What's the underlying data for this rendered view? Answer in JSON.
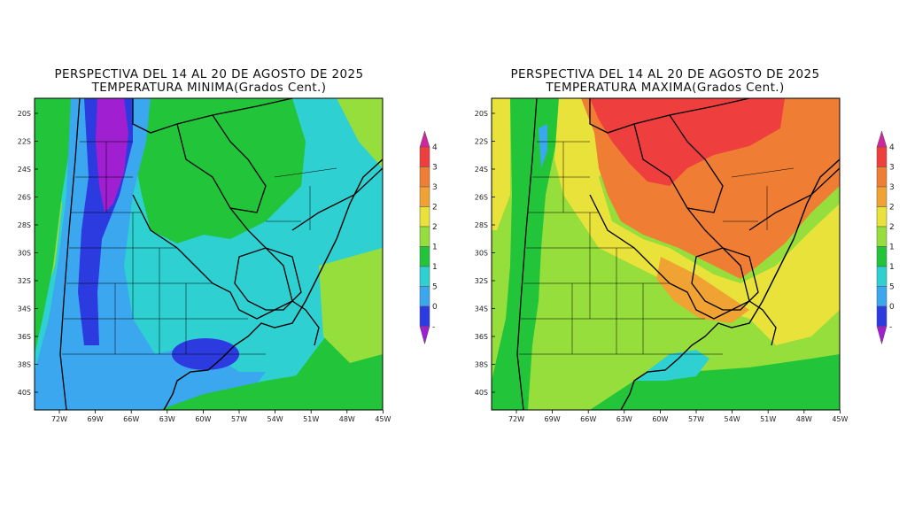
{
  "panels": [
    {
      "id": "min",
      "title_line1": "PERSPECTIVA DEL 14 AL 20 DE AGOSTO DE 2025",
      "title_line2": "TEMPERATURA MINIMA(Grados Cent.)",
      "colorbar_labels": [
        "4",
        "3",
        "3",
        "2",
        "2",
        "1",
        "1",
        "5",
        "0",
        "-"
      ]
    },
    {
      "id": "max",
      "title_line1": "PERSPECTIVA DEL 14 AL 20 DE AGOSTO DE 2025",
      "title_line2": "TEMPERATURA MAXIMA(Grados Cent.)",
      "colorbar_labels": [
        "4",
        "3",
        "3",
        "2",
        "2",
        "1",
        "1",
        "5",
        "0",
        "-"
      ]
    }
  ],
  "lat_labels": [
    "20S",
    "22S",
    "24S",
    "26S",
    "28S",
    "30S",
    "32S",
    "34S",
    "36S",
    "38S",
    "40S"
  ],
  "lon_labels": [
    "72W",
    "69W",
    "66W",
    "63W",
    "60W",
    "57W",
    "54W",
    "51W",
    "48W",
    "45W"
  ],
  "colors": {
    "purple": "#a01fd0",
    "blue": "#2b3be0",
    "lightblue": "#3aa7ef",
    "cyan": "#2fd0d2",
    "green": "#22c43a",
    "yellowgreen": "#96de3c",
    "yellow": "#e8e23a",
    "orange": "#f0a333",
    "orangered": "#ef7e34",
    "red": "#ef3e3e",
    "magenta": "#d0279f"
  }
}
